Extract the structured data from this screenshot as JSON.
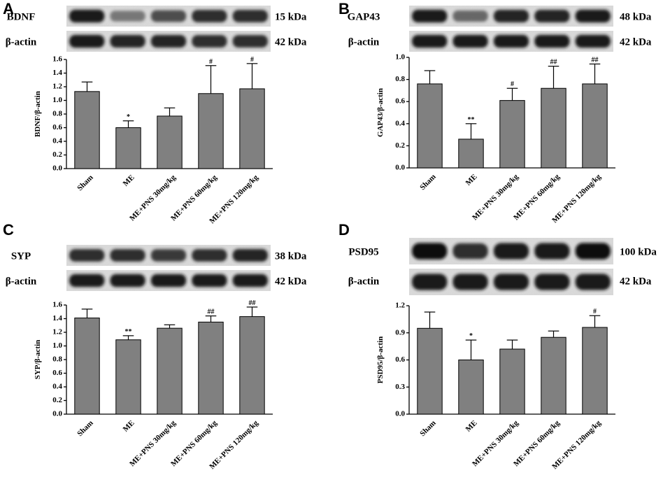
{
  "panels": [
    {
      "letter": "A",
      "blot_rows": [
        {
          "label": "BDNF",
          "kda": "15 kDa",
          "band_intensity": [
            0.95,
            0.45,
            0.7,
            0.85,
            0.85
          ]
        },
        {
          "label": "β-actin",
          "kda": "42 kDa",
          "band_intensity": [
            0.95,
            0.9,
            0.9,
            0.85,
            0.85
          ]
        }
      ]
    },
    {
      "letter": "B",
      "blot_rows": [
        {
          "label": "GAP43",
          "kda": "48 kDa",
          "band_intensity": [
            0.95,
            0.55,
            0.9,
            0.9,
            0.95
          ]
        },
        {
          "label": "β-actin",
          "kda": "42 kDa",
          "band_intensity": [
            0.95,
            0.95,
            0.95,
            0.95,
            0.95
          ]
        }
      ]
    },
    {
      "letter": "C",
      "blot_rows": [
        {
          "label": "SYP",
          "kda": "38 kDa",
          "band_intensity": [
            0.85,
            0.85,
            0.8,
            0.85,
            0.9
          ]
        },
        {
          "label": "β-actin",
          "kda": "42 kDa",
          "band_intensity": [
            0.95,
            0.95,
            0.95,
            0.95,
            0.95
          ]
        }
      ]
    },
    {
      "letter": "D",
      "blot_rows": [
        {
          "label": "PSD95",
          "kda": "100 kDa",
          "band_intensity": [
            1.0,
            0.85,
            0.95,
            0.95,
            1.0
          ]
        },
        {
          "label": "β-actin",
          "kda": "42 kDa",
          "band_intensity": [
            0.95,
            0.95,
            0.95,
            0.95,
            0.95
          ]
        }
      ]
    }
  ],
  "chart_data": [
    {
      "type": "bar",
      "panel": "A",
      "categories": [
        "Sham",
        "ME",
        "ME+PNS 30mg/kg",
        "ME+PNS 60mg/kg",
        "ME+PNS 120mg/kg"
      ],
      "values": [
        1.13,
        0.6,
        0.77,
        1.1,
        1.17
      ],
      "errors": [
        0.14,
        0.1,
        0.12,
        0.41,
        0.37
      ],
      "significance": [
        "",
        "*",
        "",
        "#",
        "#"
      ],
      "ylabel": "BDNF/β-actin",
      "ylim": [
        0,
        1.6
      ],
      "yticks": [
        "0.0",
        "0.2",
        "0.4",
        "0.6",
        "0.8",
        "1.0",
        "1.2",
        "1.4",
        "1.6"
      ]
    },
    {
      "type": "bar",
      "panel": "B",
      "categories": [
        "Sham",
        "ME",
        "ME+PNS 30mg/kg",
        "ME+PNS 60mg/kg",
        "ME+PNS 120mg/kg"
      ],
      "values": [
        0.76,
        0.26,
        0.61,
        0.72,
        0.76
      ],
      "errors": [
        0.12,
        0.14,
        0.11,
        0.2,
        0.18
      ],
      "significance": [
        "",
        "**",
        "#",
        "##",
        "##"
      ],
      "ylabel": "GAP43/β-actin",
      "ylim": [
        0,
        1.0
      ],
      "yticks": [
        "0.0",
        "0.2",
        "0.4",
        "0.6",
        "0.8",
        "1.0"
      ]
    },
    {
      "type": "bar",
      "panel": "C",
      "categories": [
        "Sham",
        "ME",
        "ME+PNS 30mg/kg",
        "ME+PNS 60mg/kg",
        "ME+PNS 120mg/kg"
      ],
      "values": [
        1.41,
        1.09,
        1.26,
        1.35,
        1.43
      ],
      "errors": [
        0.13,
        0.06,
        0.05,
        0.09,
        0.14
      ],
      "significance": [
        "",
        "**",
        "",
        "##",
        "##"
      ],
      "ylabel": "SYP/β-actin",
      "ylim": [
        0,
        1.6
      ],
      "yticks": [
        "0.0",
        "0.2",
        "0.4",
        "0.6",
        "0.8",
        "1.0",
        "1.2",
        "1.4",
        "1.6"
      ]
    },
    {
      "type": "bar",
      "panel": "D",
      "categories": [
        "Sham",
        "ME",
        "ME+PNS 30mg/kg",
        "ME+PNS 60mg/kg",
        "ME+PNS 120mg/kg"
      ],
      "values": [
        0.95,
        0.6,
        0.72,
        0.85,
        0.96
      ],
      "errors": [
        0.18,
        0.22,
        0.1,
        0.07,
        0.13
      ],
      "significance": [
        "",
        "*",
        "",
        "",
        "#"
      ],
      "ylabel": "PSD95/β-actin",
      "ylim": [
        0,
        1.2
      ],
      "yticks": [
        "0.0",
        "0.3",
        "0.6",
        "0.9",
        "1.2"
      ]
    }
  ]
}
